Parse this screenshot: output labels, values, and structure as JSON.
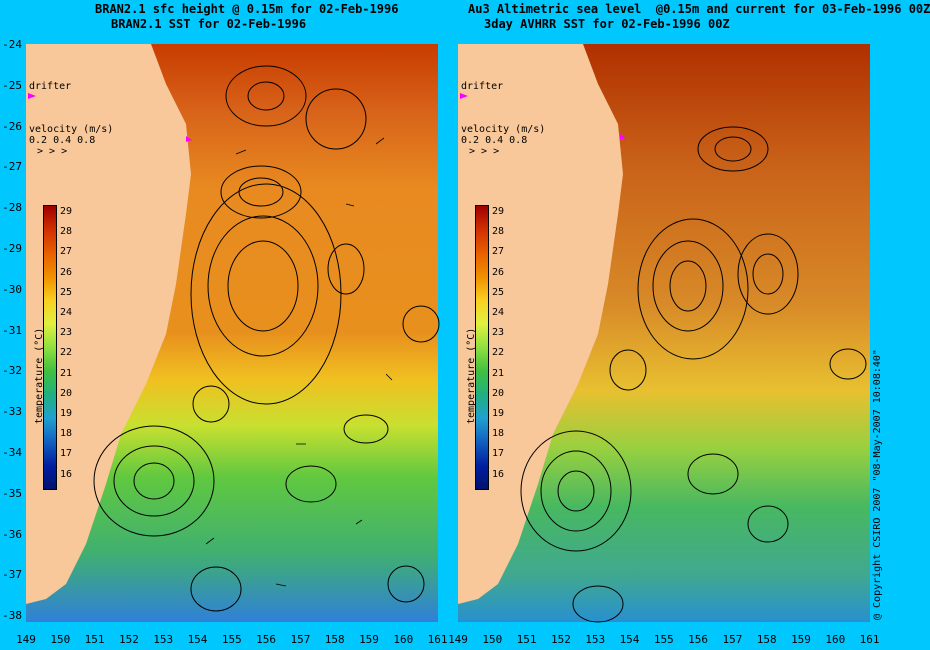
{
  "titles": {
    "left_line1": "BRAN2.1 sfc height @ 0.15m for 02-Feb-1996",
    "left_line2": "BRAN2.1 SST for 02-Feb-1996",
    "right_line1": "Au3 Altimetric sea level  @0.15m and current for 03-Feb-1996 00Z",
    "right_line2": "3day AVHRR SST for 02-Feb-1996 00Z"
  },
  "y_axis_labels": [
    "-24",
    "-25",
    "-26",
    "-27",
    "-28",
    "-29",
    "-30",
    "-31",
    "-32",
    "-33",
    "-34",
    "-35",
    "-36",
    "-37",
    "-38"
  ],
  "x_axis_labels": [
    "149",
    "150",
    "151",
    "152",
    "153",
    "154",
    "155",
    "156",
    "157",
    "158",
    "159",
    "160",
    "161",
    "149",
    "150",
    "151",
    "152",
    "153",
    "154",
    "155",
    "156",
    "157",
    "158",
    "159",
    "160",
    "161"
  ],
  "legend": {
    "drifter": "drifter",
    "velocity_title": "velocity (m/s)",
    "velocity_values": "0.2 0.4 0.8",
    "velocity_arrows": "> > >",
    "colorbar_title": "temperature (°C)",
    "colorbar_ticks": [
      "29",
      "28",
      "27",
      "26",
      "25",
      "24",
      "23",
      "22",
      "21",
      "20",
      "19",
      "18",
      "17",
      "16"
    ]
  },
  "copyright": "@ Copyright CSIRO 2007 \"08-May-2007 10:08:40\"",
  "colors": {
    "background": "#00c8ff",
    "land": "#f8c89a",
    "drifter": "#ff00ff"
  }
}
